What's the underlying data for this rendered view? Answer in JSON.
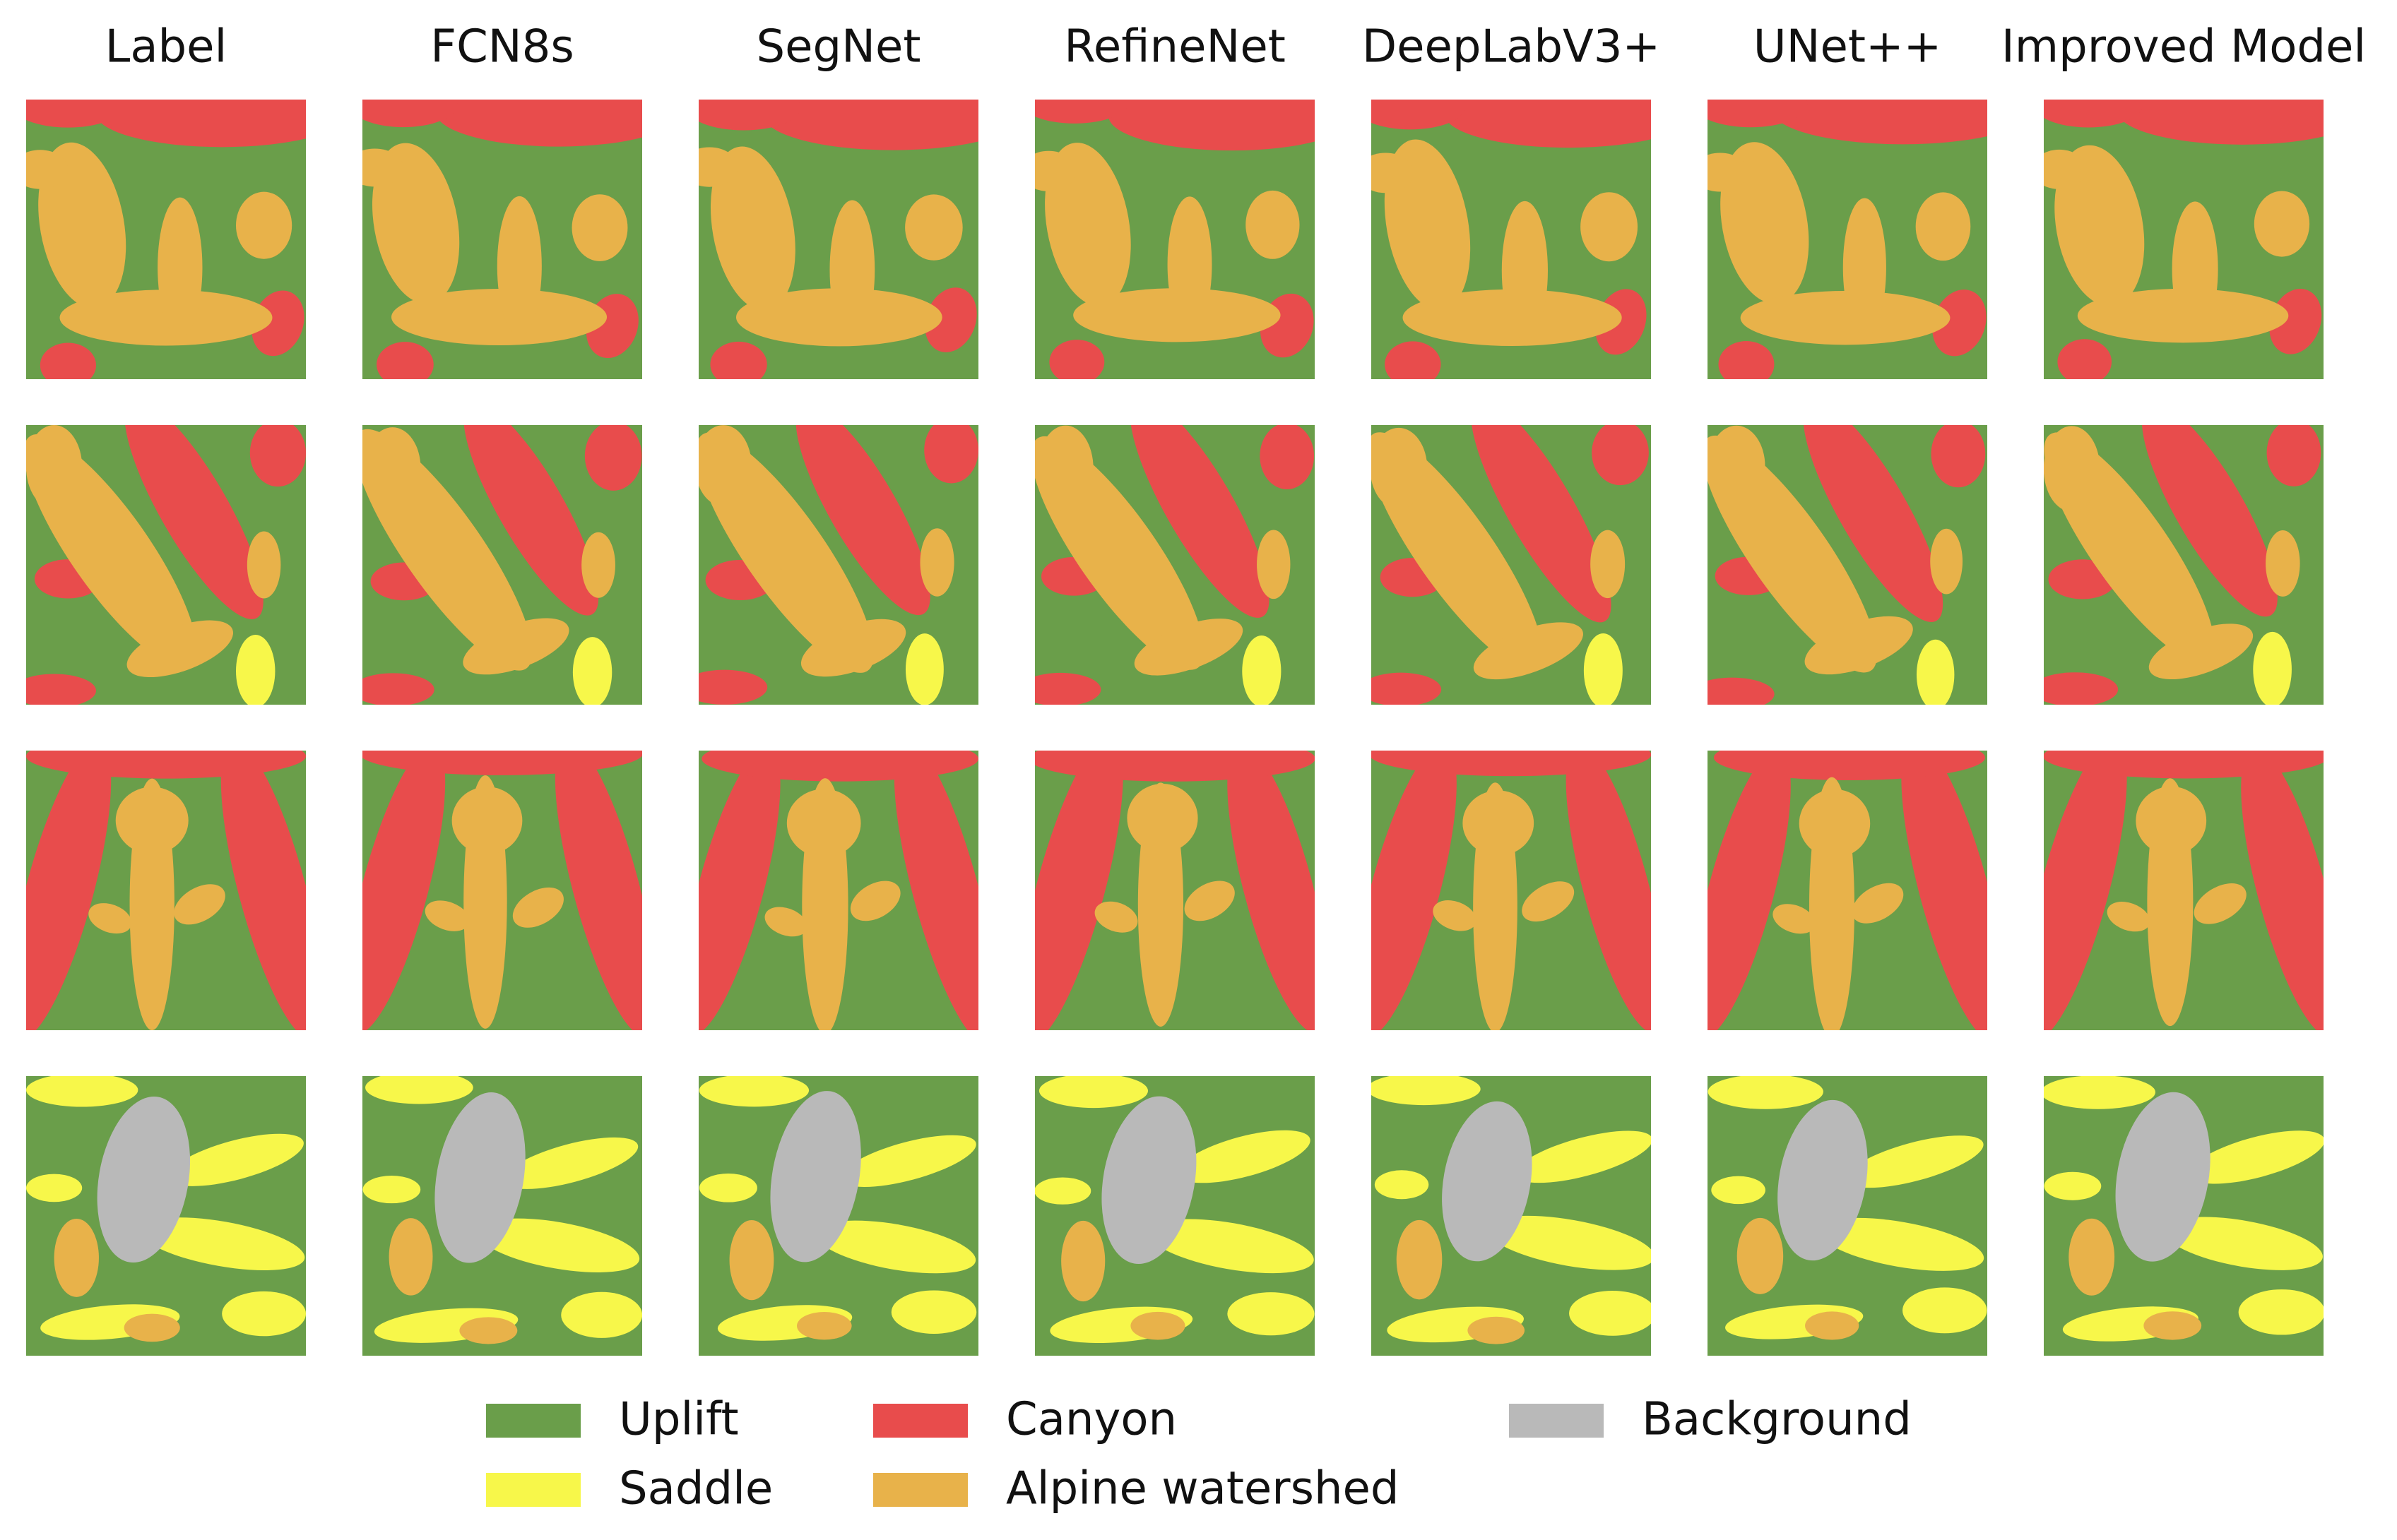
{
  "columns": [
    "Label",
    "FCN8s",
    "SegNet",
    "RefineNet",
    "DeepLabV3+",
    "UNet++",
    "Improved Model"
  ],
  "legend": [
    {
      "label": "Uplift",
      "color": "#6a9e4a"
    },
    {
      "label": "Canyon",
      "color": "#e84c4c"
    },
    {
      "label": "Background",
      "color": "#b9b9b9"
    },
    {
      "label": "Saddle",
      "color": "#f7f74a"
    },
    {
      "label": "Alpine watershed",
      "color": "#e8b24a"
    }
  ]
}
